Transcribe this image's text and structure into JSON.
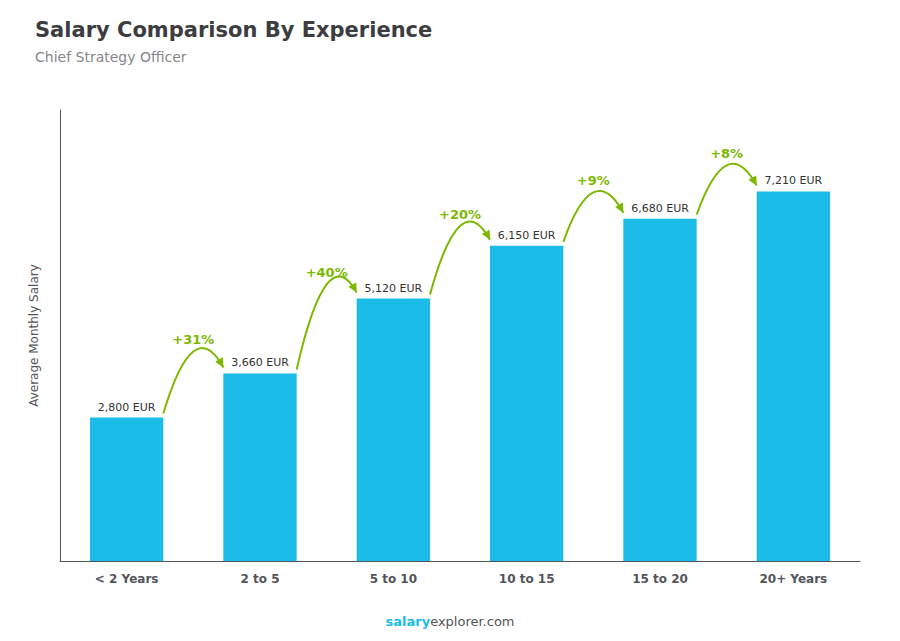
{
  "chart_data": {
    "type": "bar",
    "title": "Salary Comparison By Experience",
    "subtitle": "Chief Strategy Officer",
    "ylabel": "Average Monthly Salary",
    "categories": [
      "< 2 Years",
      "2 to 5",
      "5 to 10",
      "10 to 15",
      "15 to 20",
      "20+ Years"
    ],
    "values": [
      2800,
      3660,
      5120,
      6150,
      6680,
      7210
    ],
    "value_labels": [
      "2,800 EUR",
      "3,660 EUR",
      "5,120 EUR",
      "6,150 EUR",
      "6,680 EUR",
      "7,210 EUR"
    ],
    "data_labels": true,
    "annotations": [
      "+31%",
      "+40%",
      "+20%",
      "+9%",
      "+8%"
    ],
    "footer": [
      "salary",
      "explorer.com"
    ],
    "color": "#1BBDE8",
    "ylim": [
      0,
      8800
    ],
    "tick_labels": "x",
    "grid": false
  }
}
